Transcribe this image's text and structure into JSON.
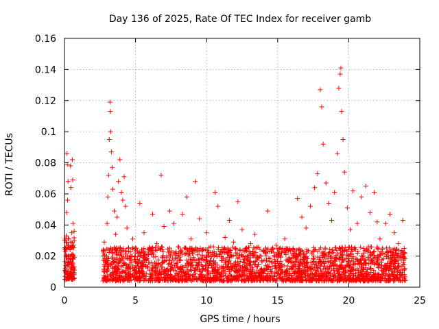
{
  "chart_data": {
    "type": "scatter",
    "title": "Day 136 of 2025, Rate Of TEC Index for receiver gamb",
    "xlabel": "GPS time / hours",
    "ylabel": "ROTI / TECUs",
    "xlim": [
      0,
      25
    ],
    "ylim": [
      0,
      0.16
    ],
    "x_ticks": [
      0,
      5,
      10,
      15,
      20,
      25
    ],
    "x_tick_labels": [
      "0",
      "5",
      "10",
      "15",
      "20",
      "25"
    ],
    "y_ticks": [
      0,
      0.02,
      0.04,
      0.06,
      0.08,
      0.1,
      0.12,
      0.14,
      0.16
    ],
    "y_tick_labels": [
      "0",
      "0.02",
      "0.04",
      "0.06",
      "0.08",
      "0.1",
      "0.12",
      "0.14",
      "0.16"
    ],
    "grid": true,
    "marker": "+",
    "color": "#ff0000",
    "series": [
      {
        "name": "ROTI",
        "points": [
          [
            0.05,
            0.012
          ],
          [
            0.1,
            0.02
          ],
          [
            0.12,
            0.033
          ],
          [
            0.15,
            0.048
          ],
          [
            0.18,
            0.086
          ],
          [
            0.2,
            0.079
          ],
          [
            0.22,
            0.056
          ],
          [
            0.25,
            0.068
          ],
          [
            0.3,
            0.031
          ],
          [
            0.32,
            0.015
          ],
          [
            0.35,
            0.009
          ],
          [
            0.4,
            0.024
          ],
          [
            0.42,
            0.078
          ],
          [
            0.45,
            0.064
          ],
          [
            0.5,
            0.035
          ],
          [
            0.52,
            0.021
          ],
          [
            0.55,
            0.082
          ],
          [
            0.58,
            0.069
          ],
          [
            0.6,
            0.041
          ],
          [
            0.62,
            0.018
          ],
          [
            0.65,
            0.027
          ],
          [
            0.68,
            0.036
          ],
          [
            0.7,
            0.011
          ],
          [
            2.8,
            0.029
          ],
          [
            2.9,
            0.016
          ],
          [
            3.0,
            0.041
          ],
          [
            3.05,
            0.058
          ],
          [
            3.1,
            0.072
          ],
          [
            3.15,
            0.095
          ],
          [
            3.2,
            0.119
          ],
          [
            3.22,
            0.113
          ],
          [
            3.25,
            0.1
          ],
          [
            3.3,
            0.087
          ],
          [
            3.35,
            0.077
          ],
          [
            3.4,
            0.063
          ],
          [
            3.5,
            0.049
          ],
          [
            3.6,
            0.034
          ],
          [
            3.7,
            0.045
          ],
          [
            3.8,
            0.068
          ],
          [
            3.9,
            0.082
          ],
          [
            4.0,
            0.061
          ],
          [
            4.1,
            0.056
          ],
          [
            4.2,
            0.071
          ],
          [
            4.3,
            0.052
          ],
          [
            4.4,
            0.038
          ],
          [
            4.5,
            0.025
          ],
          [
            4.6,
            0.018
          ],
          [
            4.8,
            0.031
          ],
          [
            5.0,
            0.022
          ],
          [
            5.3,
            0.054
          ],
          [
            5.6,
            0.035
          ],
          [
            5.9,
            0.024
          ],
          [
            6.2,
            0.047
          ],
          [
            6.5,
            0.028
          ],
          [
            6.8,
            0.072
          ],
          [
            7.0,
            0.039
          ],
          [
            7.2,
            0.019
          ],
          [
            7.4,
            0.049
          ],
          [
            7.7,
            0.041
          ],
          [
            8.0,
            0.026
          ],
          [
            8.3,
            0.047
          ],
          [
            8.6,
            0.058
          ],
          [
            8.9,
            0.031
          ],
          [
            9.2,
            0.068
          ],
          [
            9.5,
            0.044
          ],
          [
            9.8,
            0.017
          ],
          [
            10.0,
            0.035
          ],
          [
            10.3,
            0.026
          ],
          [
            10.6,
            0.061
          ],
          [
            10.8,
            0.052
          ],
          [
            11.0,
            0.023
          ],
          [
            11.3,
            0.032
          ],
          [
            11.6,
            0.043
          ],
          [
            11.9,
            0.029
          ],
          [
            12.2,
            0.055
          ],
          [
            12.5,
            0.037
          ],
          [
            12.8,
            0.014
          ],
          [
            13.1,
            0.028
          ],
          [
            13.4,
            0.034
          ],
          [
            13.7,
            0.019
          ],
          [
            14.0,
            0.023
          ],
          [
            14.3,
            0.049
          ],
          [
            14.6,
            0.016
          ],
          [
            14.9,
            0.027
          ],
          [
            15.2,
            0.02
          ],
          [
            15.5,
            0.031
          ],
          [
            15.8,
            0.018
          ],
          [
            16.1,
            0.024
          ],
          [
            16.4,
            0.057
          ],
          [
            16.7,
            0.045
          ],
          [
            17.0,
            0.038
          ],
          [
            17.3,
            0.052
          ],
          [
            17.6,
            0.064
          ],
          [
            17.8,
            0.073
          ],
          [
            18.0,
            0.127
          ],
          [
            18.1,
            0.116
          ],
          [
            18.2,
            0.092
          ],
          [
            18.4,
            0.067
          ],
          [
            18.6,
            0.054
          ],
          [
            18.8,
            0.043
          ],
          [
            19.0,
            0.061
          ],
          [
            19.2,
            0.086
          ],
          [
            19.3,
            0.128
          ],
          [
            19.4,
            0.137
          ],
          [
            19.45,
            0.141
          ],
          [
            19.5,
            0.113
          ],
          [
            19.6,
            0.095
          ],
          [
            19.7,
            0.074
          ],
          [
            19.9,
            0.051
          ],
          [
            20.1,
            0.037
          ],
          [
            20.3,
            0.062
          ],
          [
            20.6,
            0.041
          ],
          [
            20.9,
            0.058
          ],
          [
            21.2,
            0.065
          ],
          [
            21.5,
            0.048
          ],
          [
            21.8,
            0.061
          ],
          [
            22.0,
            0.042
          ],
          [
            22.2,
            0.031
          ],
          [
            22.6,
            0.041
          ],
          [
            22.9,
            0.047
          ],
          [
            23.2,
            0.035
          ],
          [
            23.5,
            0.028
          ],
          [
            23.8,
            0.043
          ],
          [
            23.9,
            0.019
          ]
        ]
      }
    ],
    "dense_band": {
      "segments": [
        [
          0.0,
          0.7,
          0.005,
          0.032
        ],
        [
          2.7,
          24.0,
          0.004,
          0.026
        ]
      ],
      "note": "dense cloud of low-ROTI points"
    }
  }
}
